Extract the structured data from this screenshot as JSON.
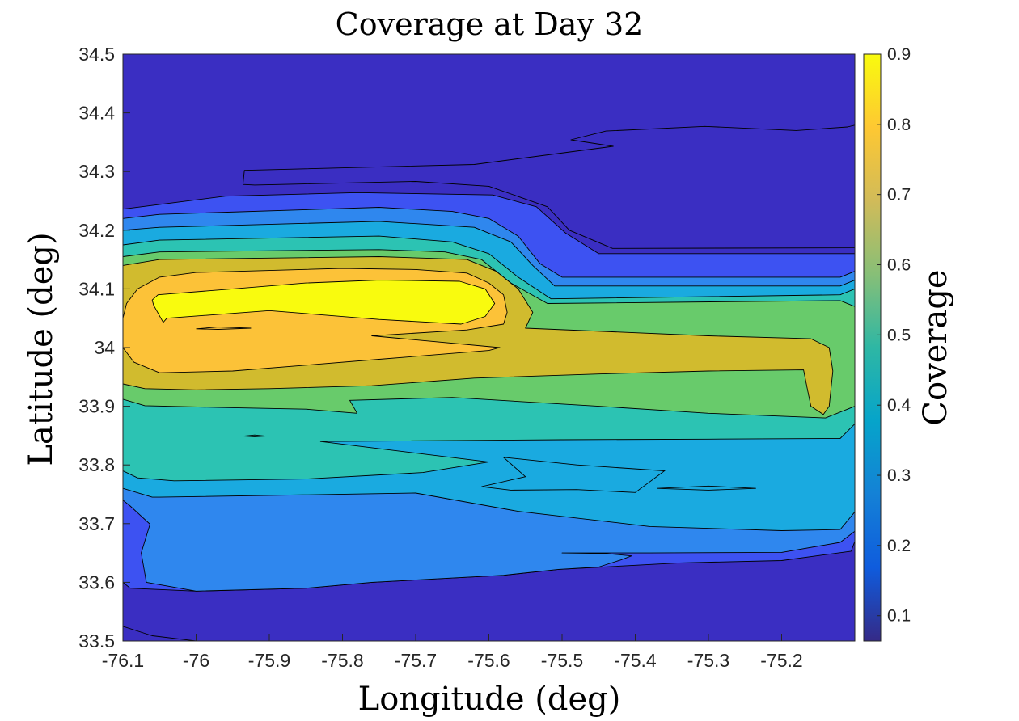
{
  "chart_data": {
    "type": "contour",
    "title": "Coverage at Day 32",
    "xlabel": "Longitude (deg)",
    "ylabel": "Latitude (deg)",
    "colorbar_label": "Coverage",
    "xlim": [
      -76.1,
      -75.1
    ],
    "ylim": [
      33.5,
      34.5
    ],
    "clim": [
      0.064,
      0.9
    ],
    "x_ticks": [
      -76.1,
      -76.0,
      -75.9,
      -75.8,
      -75.7,
      -75.6,
      -75.5,
      -75.4,
      -75.3,
      -75.2
    ],
    "x_tick_labels": [
      "-76.1",
      "-76",
      "-75.9",
      "-75.8",
      "-75.7",
      "-75.6",
      "-75.5",
      "-75.4",
      "-75.3",
      "-75.2"
    ],
    "y_ticks": [
      33.5,
      33.6,
      33.7,
      33.8,
      33.9,
      34.0,
      34.1,
      34.2,
      34.3,
      34.4,
      34.5
    ],
    "y_tick_labels": [
      "33.5",
      "33.6",
      "33.7",
      "33.8",
      "33.9",
      "34",
      "34.1",
      "34.2",
      "34.3",
      "34.4",
      "34.5"
    ],
    "colorbar_ticks": [
      0.1,
      0.2,
      0.3,
      0.4,
      0.5,
      0.6,
      0.7,
      0.8,
      0.9
    ],
    "colorbar_tick_labels": [
      "0.1",
      "0.2",
      "0.3",
      "0.4",
      "0.5",
      "0.6",
      "0.7",
      "0.8",
      "0.9"
    ],
    "colormap": "parula",
    "colorbar_stops": [
      "#352a87",
      "#0f5cdd",
      "#1481d6",
      "#06a4ca",
      "#2eb7a4",
      "#87bf77",
      "#d1bb59",
      "#fec832",
      "#f9fb0e"
    ],
    "level_colors": [
      "#3a2ec2",
      "#3d52f2",
      "#2f87ee",
      "#1aaae0",
      "#2cc3b3",
      "#68cb6b",
      "#d1bb2e",
      "#fcc238",
      "#f9fb0e"
    ],
    "grid": false,
    "bands": [
      {
        "level": 0.1,
        "color": "#3a2ec2",
        "polygon": [
          [
            -75.936,
            34.278
          ],
          [
            -75.934,
            34.302
          ],
          [
            -75.62,
            34.312
          ],
          [
            -75.43,
            34.343
          ],
          [
            -75.488,
            34.354
          ],
          [
            -75.44,
            34.369
          ],
          [
            -75.305,
            34.377
          ],
          [
            -75.18,
            34.37
          ],
          [
            -75.11,
            34.376
          ],
          [
            -75.1,
            34.379
          ],
          [
            -75.1,
            34.17
          ],
          [
            -75.431,
            34.169
          ],
          [
            -75.49,
            34.2
          ],
          [
            -75.52,
            34.24
          ],
          [
            -75.6,
            34.275
          ],
          [
            -75.7,
            34.283
          ],
          [
            -75.92,
            34.277
          ]
        ]
      },
      {
        "level": 0.1,
        "color": "#3a2ec2",
        "polygon": [
          [
            -76.1,
            33.5
          ],
          [
            -76.1,
            33.525
          ],
          [
            -76.06,
            33.509
          ],
          [
            -76.02,
            33.503
          ],
          [
            -76.0,
            33.5
          ]
        ]
      },
      {
        "level": 0.2,
        "color": "#3d52f2",
        "polygon": [
          [
            -76.1,
            33.6
          ],
          [
            -76.09,
            33.59
          ],
          [
            -76.0,
            33.585
          ],
          [
            -75.85,
            33.59
          ],
          [
            -75.76,
            33.6
          ],
          [
            -75.58,
            33.612
          ],
          [
            -75.505,
            33.622
          ],
          [
            -75.34,
            33.633
          ],
          [
            -75.2,
            33.637
          ],
          [
            -75.105,
            33.653
          ],
          [
            -75.1,
            33.67
          ],
          [
            -75.1,
            34.16
          ],
          [
            -75.45,
            34.16
          ],
          [
            -75.495,
            34.195
          ],
          [
            -75.535,
            34.24
          ],
          [
            -75.595,
            34.26
          ],
          [
            -75.78,
            34.264
          ],
          [
            -75.96,
            34.258
          ],
          [
            -76.1,
            34.236
          ]
        ]
      },
      {
        "level": 0.3,
        "color": "#2f87ee",
        "polygon": [
          [
            -76.1,
            33.74
          ],
          [
            -76.09,
            33.73
          ],
          [
            -76.063,
            33.699
          ],
          [
            -76.075,
            33.65
          ],
          [
            -76.068,
            33.6
          ],
          [
            -76.0,
            33.585
          ],
          [
            -75.85,
            33.59
          ],
          [
            -75.76,
            33.6
          ],
          [
            -75.58,
            33.612
          ],
          [
            -75.505,
            33.622
          ],
          [
            -75.45,
            33.626
          ],
          [
            -75.42,
            33.638
          ],
          [
            -75.405,
            33.645
          ],
          [
            -75.44,
            33.649
          ],
          [
            -75.5,
            33.65
          ],
          [
            -75.38,
            33.65
          ],
          [
            -75.2,
            33.651
          ],
          [
            -75.12,
            33.668
          ],
          [
            -75.1,
            33.687
          ],
          [
            -75.1,
            34.13
          ],
          [
            -75.12,
            34.12
          ],
          [
            -75.5,
            34.12
          ],
          [
            -75.53,
            34.143
          ],
          [
            -75.56,
            34.19
          ],
          [
            -75.6,
            34.22
          ],
          [
            -75.65,
            34.232
          ],
          [
            -75.75,
            34.239
          ],
          [
            -76.05,
            34.227
          ],
          [
            -76.1,
            34.22
          ]
        ]
      },
      {
        "level": 0.4,
        "color": "#1aaae0",
        "polygon": [
          [
            -76.1,
            33.76
          ],
          [
            -76.06,
            33.745
          ],
          [
            -76.05,
            33.745
          ],
          [
            -75.7,
            33.752
          ],
          [
            -75.56,
            33.721
          ],
          [
            -75.38,
            33.695
          ],
          [
            -75.2,
            33.688
          ],
          [
            -75.12,
            33.69
          ],
          [
            -75.1,
            33.72
          ],
          [
            -75.1,
            34.115
          ],
          [
            -75.12,
            34.105
          ],
          [
            -75.51,
            34.105
          ],
          [
            -75.54,
            34.14
          ],
          [
            -75.57,
            34.18
          ],
          [
            -75.62,
            34.205
          ],
          [
            -75.75,
            34.215
          ],
          [
            -76.05,
            34.205
          ],
          [
            -76.1,
            34.2
          ]
        ]
      },
      {
        "level": 0.5,
        "color": "#2cc3b3",
        "polygon": [
          [
            -76.1,
            33.79
          ],
          [
            -76.08,
            33.778
          ],
          [
            -76.03,
            33.773
          ],
          [
            -75.85,
            33.776
          ],
          [
            -75.69,
            33.787
          ],
          [
            -75.6,
            33.805
          ],
          [
            -75.83,
            33.84
          ],
          [
            -75.5,
            33.843
          ],
          [
            -75.3,
            33.844
          ],
          [
            -75.12,
            33.845
          ],
          [
            -75.1,
            33.87
          ],
          [
            -75.1,
            34.1
          ],
          [
            -75.12,
            34.09
          ],
          [
            -75.515,
            34.083
          ],
          [
            -75.56,
            34.12
          ],
          [
            -75.6,
            34.16
          ],
          [
            -75.65,
            34.18
          ],
          [
            -75.75,
            34.19
          ],
          [
            -76.05,
            34.183
          ],
          [
            -76.1,
            34.175
          ]
        ]
      },
      {
        "level": 0.6,
        "color": "#68cb6b",
        "polygon": [
          [
            -76.1,
            33.912
          ],
          [
            -76.07,
            33.901
          ],
          [
            -75.97,
            33.898
          ],
          [
            -75.85,
            33.895
          ],
          [
            -75.78,
            33.888
          ],
          [
            -75.79,
            33.91
          ],
          [
            -75.65,
            33.915
          ],
          [
            -75.45,
            33.9
          ],
          [
            -75.3,
            33.888
          ],
          [
            -75.14,
            33.88
          ],
          [
            -75.1,
            33.9
          ],
          [
            -75.1,
            34.07
          ],
          [
            -75.12,
            34.08
          ],
          [
            -75.52,
            34.075
          ],
          [
            -75.57,
            34.11
          ],
          [
            -75.61,
            34.15
          ],
          [
            -75.66,
            34.163
          ],
          [
            -75.75,
            34.167
          ],
          [
            -76.05,
            34.163
          ],
          [
            -76.1,
            34.155
          ]
        ]
      },
      {
        "level": 0.7,
        "color": "#d1bb2e",
        "polygon": [
          [
            -76.1,
            33.938
          ],
          [
            -76.07,
            33.93
          ],
          [
            -76.0,
            33.928
          ],
          [
            -75.9,
            33.93
          ],
          [
            -75.76,
            33.935
          ],
          [
            -75.62,
            33.948
          ],
          [
            -75.45,
            33.955
          ],
          [
            -75.3,
            33.96
          ],
          [
            -75.17,
            33.962
          ],
          [
            -75.165,
            33.93
          ],
          [
            -75.16,
            33.9
          ],
          [
            -75.143,
            33.886
          ],
          [
            -75.135,
            33.9
          ],
          [
            -75.13,
            33.96
          ],
          [
            -75.135,
            34.0
          ],
          [
            -75.16,
            34.015
          ],
          [
            -75.3,
            34.02
          ],
          [
            -75.55,
            34.033
          ],
          [
            -75.54,
            34.06
          ],
          [
            -75.56,
            34.1
          ],
          [
            -75.59,
            34.13
          ],
          [
            -75.63,
            34.15
          ],
          [
            -75.75,
            34.155
          ],
          [
            -76.05,
            34.15
          ],
          [
            -76.1,
            34.14
          ]
        ]
      },
      {
        "level": 0.8,
        "color": "#fcc238",
        "polygon": [
          [
            -76.1,
            34.0
          ],
          [
            -76.085,
            33.975
          ],
          [
            -76.05,
            33.957
          ],
          [
            -75.95,
            33.96
          ],
          [
            -75.85,
            33.97
          ],
          [
            -75.75,
            33.98
          ],
          [
            -75.6,
            33.995
          ],
          [
            -75.585,
            34.0
          ],
          [
            -75.76,
            34.02
          ],
          [
            -75.63,
            34.03
          ],
          [
            -75.58,
            34.04
          ],
          [
            -75.575,
            34.06
          ],
          [
            -75.58,
            34.09
          ],
          [
            -75.6,
            34.11
          ],
          [
            -75.63,
            34.127
          ],
          [
            -75.7,
            34.133
          ],
          [
            -75.8,
            34.135
          ],
          [
            -76.0,
            34.128
          ],
          [
            -76.05,
            34.12
          ],
          [
            -76.08,
            34.1
          ],
          [
            -76.095,
            34.075
          ],
          [
            -76.1,
            34.05
          ]
        ]
      },
      {
        "level": 0.9,
        "color": "#f9fb0e",
        "polygon": [
          [
            -76.058,
            34.072
          ],
          [
            -76.045,
            34.043
          ],
          [
            -76.04,
            34.05
          ],
          [
            -75.9,
            34.063
          ],
          [
            -75.75,
            34.048
          ],
          [
            -75.638,
            34.04
          ],
          [
            -75.605,
            34.053
          ],
          [
            -75.592,
            34.075
          ],
          [
            -75.605,
            34.1
          ],
          [
            -75.64,
            34.113
          ],
          [
            -75.75,
            34.115
          ],
          [
            -75.85,
            34.11
          ],
          [
            -75.95,
            34.1
          ],
          [
            -76.052,
            34.09
          ],
          [
            -76.06,
            34.081
          ]
        ]
      }
    ],
    "isolated_contours": [
      {
        "polygon": [
          [
            -76.0,
            34.032
          ],
          [
            -75.97,
            34.035
          ],
          [
            -75.925,
            34.033
          ],
          [
            -75.97,
            34.031
          ]
        ]
      },
      {
        "polygon": [
          [
            -75.935,
            33.849
          ],
          [
            -75.92,
            33.851
          ],
          [
            -75.905,
            33.849
          ],
          [
            -75.92,
            33.848
          ]
        ]
      },
      {
        "polygon": [
          [
            -75.37,
            33.76
          ],
          [
            -75.3,
            33.764
          ],
          [
            -75.235,
            33.76
          ],
          [
            -75.3,
            33.757
          ]
        ]
      },
      {
        "polygon": [
          [
            -75.58,
            33.813
          ],
          [
            -75.48,
            33.8
          ],
          [
            -75.36,
            33.79
          ],
          [
            -75.4,
            33.753
          ],
          [
            -75.48,
            33.758
          ],
          [
            -75.57,
            33.757
          ],
          [
            -75.61,
            33.763
          ],
          [
            -75.55,
            33.78
          ]
        ]
      }
    ]
  }
}
